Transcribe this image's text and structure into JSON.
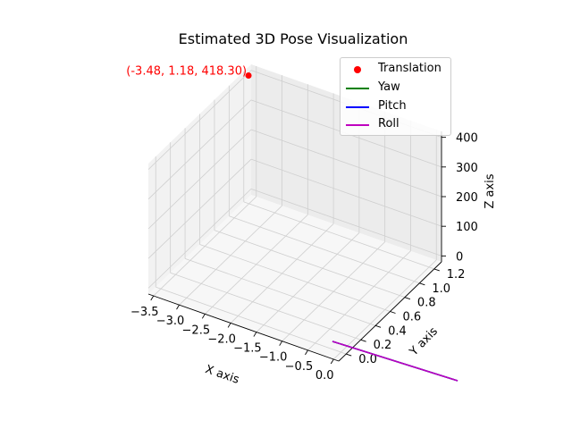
{
  "chart_data": {
    "type": "scatter",
    "projection": "3d",
    "title": "Estimated 3D Pose Visualization",
    "xlabel": "X axis",
    "ylabel": "Y axis",
    "zlabel": "Z axis",
    "xlim": [
      -3.6,
      0.1
    ],
    "ylim": [
      -0.1,
      1.3
    ],
    "zlim": [
      -20,
      420
    ],
    "x_ticks": [
      "−3.5",
      "−3.0",
      "−2.5",
      "−2.0",
      "−1.5",
      "−1.0",
      "−0.5",
      "0.0"
    ],
    "y_ticks": [
      "0.0",
      "0.2",
      "0.4",
      "0.6",
      "0.8",
      "1.0",
      "1.2"
    ],
    "z_ticks": [
      "0",
      "100",
      "200",
      "300",
      "400"
    ],
    "grid": true,
    "legend_position": "top-right",
    "point": {
      "x": -3.48,
      "y": 1.18,
      "z": 418.3,
      "label": "(-3.48, 1.18, 418.30)"
    },
    "series": [
      {
        "name": "Translation",
        "marker": "point",
        "color": "#ff0000"
      },
      {
        "name": "Yaw",
        "marker": "line",
        "color": "#008000"
      },
      {
        "name": "Pitch",
        "marker": "line",
        "color": "#0000ff"
      },
      {
        "name": "Roll",
        "marker": "line",
        "color": "#bf00bf"
      }
    ]
  }
}
